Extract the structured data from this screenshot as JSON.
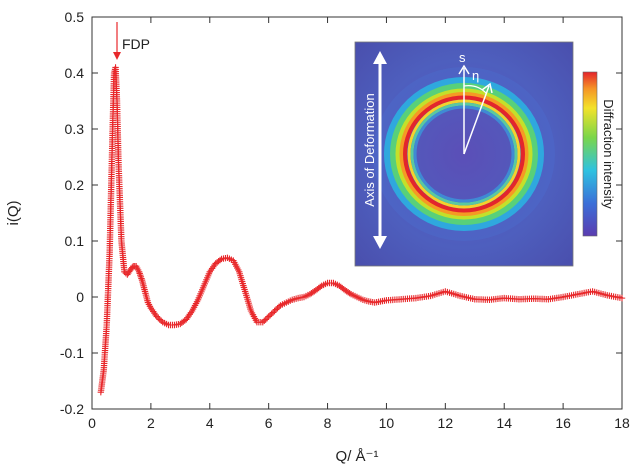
{
  "chart_data": {
    "type": "scatter",
    "xlabel": "Q/ Å⁻¹",
    "ylabel": "i(Q)",
    "xlim": [
      0,
      18
    ],
    "ylim": [
      -0.2,
      0.5
    ],
    "xticks": [
      "0",
      "2",
      "4",
      "6",
      "8",
      "10",
      "12",
      "14",
      "16",
      "18"
    ],
    "yticks": [
      "0.5",
      "0.4",
      "0.3",
      "0.2",
      "0.1",
      "0",
      "-0.1",
      "-0.2"
    ],
    "grid": false,
    "marker": "+",
    "color": "#e8282b",
    "series": [
      {
        "x": [
          0.3,
          0.4,
          0.5,
          0.6,
          0.7,
          0.75,
          0.8,
          0.85,
          0.9,
          1.0,
          1.1,
          1.2,
          1.3,
          1.4,
          1.5,
          1.6,
          1.7,
          1.8,
          1.9,
          2.0,
          2.2,
          2.4,
          2.6,
          2.8,
          3.0,
          3.2,
          3.4,
          3.6,
          3.8,
          4.0,
          4.2,
          4.4,
          4.6,
          4.8,
          5.0,
          5.2,
          5.4,
          5.6,
          5.8,
          6.0,
          6.2,
          6.4,
          6.6,
          6.8,
          7.0,
          7.2,
          7.4,
          7.6,
          7.8,
          8.0,
          8.2,
          8.4,
          8.6,
          8.8,
          9.0,
          9.2,
          9.4,
          9.6,
          9.8,
          10.0,
          10.5,
          11.0,
          11.5,
          12.0,
          12.5,
          13.0,
          13.5,
          14.0,
          14.5,
          15.0,
          15.5,
          16.0,
          16.5,
          17.0,
          17.5,
          18.0
        ],
        "y": [
          -0.17,
          -0.13,
          -0.05,
          0.08,
          0.3,
          0.4,
          0.41,
          0.35,
          0.24,
          0.1,
          0.045,
          0.04,
          0.048,
          0.055,
          0.055,
          0.045,
          0.03,
          0.01,
          -0.01,
          -0.02,
          -0.035,
          -0.045,
          -0.05,
          -0.05,
          -0.048,
          -0.04,
          -0.025,
          -0.005,
          0.02,
          0.045,
          0.06,
          0.068,
          0.07,
          0.065,
          0.045,
          0.01,
          -0.025,
          -0.045,
          -0.045,
          -0.035,
          -0.025,
          -0.015,
          -0.01,
          -0.005,
          -0.002,
          0.0,
          0.005,
          0.012,
          0.02,
          0.025,
          0.025,
          0.02,
          0.012,
          0.005,
          0.0,
          -0.005,
          -0.008,
          -0.01,
          -0.008,
          -0.006,
          -0.004,
          -0.002,
          0.002,
          0.01,
          0.002,
          -0.004,
          -0.005,
          -0.002,
          -0.004,
          -0.003,
          -0.004,
          0.0,
          0.005,
          0.01,
          0.003,
          -0.002
        ]
      }
    ],
    "annotations": [
      {
        "text": "FDP",
        "x": 0.75,
        "y": 0.46
      }
    ]
  },
  "inset": {
    "axis_text": "Axis of Deformation",
    "s_label": "s",
    "eta_label": "η",
    "colorbar_label": "Diffraction intensity"
  }
}
